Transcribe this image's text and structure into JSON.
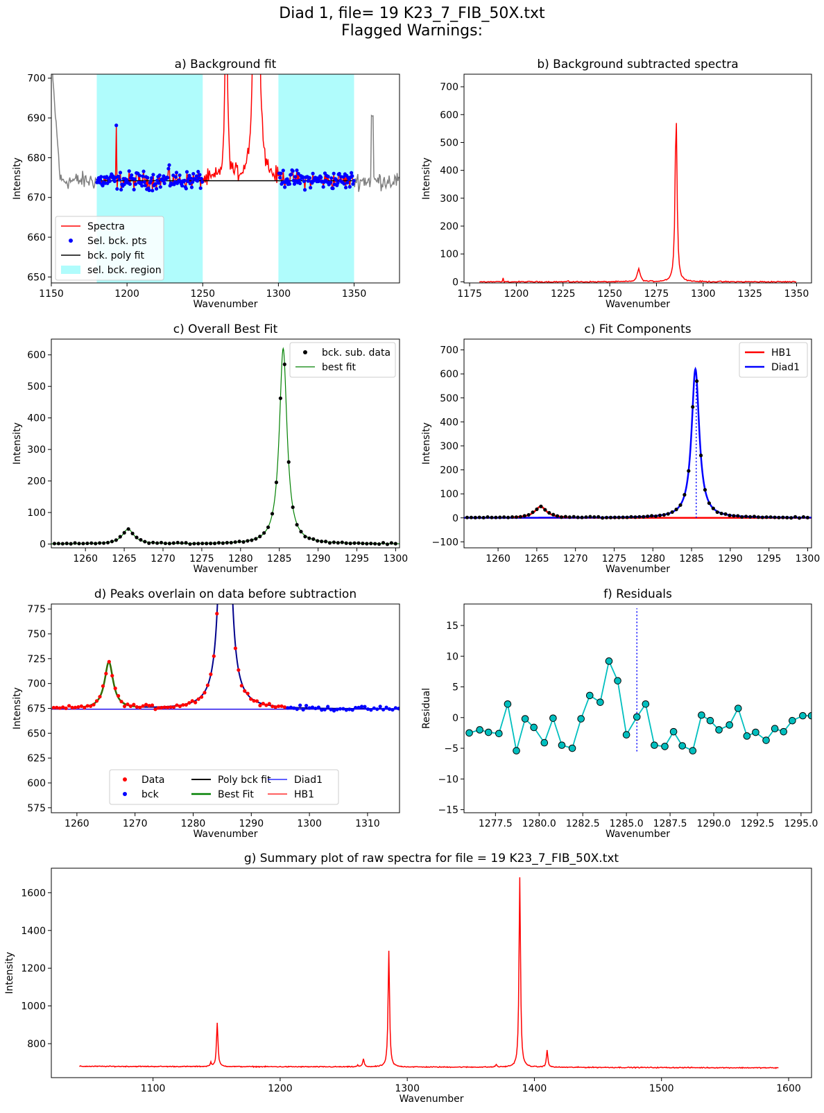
{
  "suptitle": [
    "Diad 1, file= 19 K23_7_FIB_50X.txt",
    "Flagged Warnings:"
  ],
  "colors": {
    "spectra": "#ff0000",
    "raw": "#808080",
    "bck_pts": "#0000ff",
    "poly": "#000000",
    "bck_region": "#b0fcfc",
    "best_fit": "#008000",
    "hb1": "#ff0000",
    "diad1": "#0000ff",
    "residual_line": "#00bfbf",
    "residual_marker": "#00bfbf"
  },
  "chart_data": [
    {
      "id": "a",
      "type": "line",
      "title": "a) Background fit",
      "xlabel": "Wavenumber",
      "ylabel": "Intensity",
      "xlim": [
        1150,
        1380
      ],
      "ylim": [
        648.5,
        701
      ],
      "xticks": [
        1150,
        1200,
        1250,
        1300,
        1350
      ],
      "yticks": [
        650,
        660,
        670,
        680,
        690,
        700
      ],
      "bck_regions": [
        [
          1180,
          1250
        ],
        [
          1300,
          1350
        ]
      ],
      "poly_fit": [
        [
          1180,
          674.2
        ],
        [
          1350,
          674.2
        ]
      ],
      "legend": {
        "position": "lower-left",
        "entries": [
          "Spectra",
          "Sel. bck. pts",
          "bck. poly fit",
          "sel. bck. region"
        ]
      }
    },
    {
      "id": "b",
      "type": "line",
      "title": "b) Background subtracted spectra",
      "xlabel": "Wavenumber",
      "ylabel": "Intensity",
      "xlim": [
        1172,
        1358
      ],
      "ylim": [
        -4,
        745
      ],
      "xticks": [
        1175,
        1200,
        1225,
        1250,
        1275,
        1300,
        1325,
        1350
      ],
      "yticks": [
        0,
        100,
        200,
        300,
        400,
        500,
        600,
        700
      ],
      "peaks": [
        {
          "x": 1265.5,
          "height": 47,
          "width": 0.9
        },
        {
          "x": 1285.5,
          "height": 620,
          "width": 0.6
        }
      ],
      "x_range": [
        1180,
        1350
      ]
    },
    {
      "id": "c1",
      "type": "scatter+line",
      "title": "c) Overall Best Fit",
      "xlabel": "Wavenumber",
      "ylabel": "Intensity",
      "xlim": [
        1255.6,
        1300.5
      ],
      "ylim": [
        -12,
        650
      ],
      "xticks": [
        1260,
        1265,
        1270,
        1275,
        1280,
        1285,
        1290,
        1295,
        1300
      ],
      "yticks": [
        0,
        100,
        200,
        300,
        400,
        500,
        600
      ],
      "legend": {
        "position": "top-right",
        "entries": [
          "bck. sub. data",
          "best fit"
        ]
      }
    },
    {
      "id": "c2",
      "type": "scatter+line",
      "title": "c) Fit Components",
      "xlabel": "Wavenumber",
      "ylabel": "Intensity",
      "xlim": [
        1255.6,
        1300.5
      ],
      "ylim": [
        -125,
        745
      ],
      "xticks": [
        1260,
        1265,
        1270,
        1275,
        1280,
        1285,
        1290,
        1295,
        1300
      ],
      "yticks": [
        -100,
        0,
        100,
        200,
        300,
        400,
        500,
        600,
        700
      ],
      "peak_marker_x": 1285.6,
      "legend": {
        "position": "top-right",
        "entries": [
          "HB1",
          "Diad1"
        ]
      }
    },
    {
      "id": "d",
      "type": "scatter+line",
      "title": "d) Peaks overlain on data before subtraction",
      "xlabel": "Wavenumber",
      "ylabel": "Intensity",
      "xlim": [
        1255.6,
        1315.5
      ],
      "ylim": [
        570,
        780
      ],
      "xticks": [
        1260,
        1270,
        1280,
        1290,
        1300,
        1310
      ],
      "yticks": [
        575,
        600,
        625,
        650,
        675,
        700,
        725,
        750,
        775
      ],
      "baseline": 674.2,
      "legend": {
        "position": "bottom-center",
        "entries": [
          "Data",
          "bck",
          "Poly bck fit",
          "Best Fit",
          "Diad1",
          "HB1"
        ]
      }
    },
    {
      "id": "f",
      "type": "line",
      "title": "f) Residuals",
      "xlabel": "Wavenumber",
      "ylabel": "Residual",
      "xlim": [
        1275.7,
        1295.6
      ],
      "ylim": [
        -15.5,
        18.5
      ],
      "xticks": [
        1277.5,
        1280.0,
        1282.5,
        1285.0,
        1287.5,
        1290.0,
        1292.5,
        1295.0
      ],
      "yticks": [
        -15,
        -10,
        -5,
        0,
        5,
        10,
        15
      ],
      "marker_x": 1285.6,
      "marker_range": [
        -5.5,
        17.8
      ],
      "x": [
        1276,
        1276.6,
        1277.1,
        1277.7,
        1278.2,
        1278.7,
        1279.2,
        1279.7,
        1280.3,
        1280.8,
        1281.3,
        1281.9,
        1282.4,
        1282.9,
        1283.5,
        1284.0,
        1284.5,
        1285.0,
        1285.6,
        1286.1,
        1286.6,
        1287.2,
        1287.7,
        1288.2,
        1288.8,
        1289.3,
        1289.8,
        1290.3,
        1290.9,
        1291.4,
        1291.9,
        1292.4,
        1293.0,
        1293.5,
        1294.0,
        1294.5,
        1295.1,
        1295.6
      ],
      "y": [
        -2.5,
        -2.0,
        -2.4,
        -2.6,
        2.2,
        -5.4,
        -0.2,
        -1.6,
        -4.1,
        -0.1,
        -4.5,
        -5.0,
        -0.2,
        3.6,
        2.5,
        9.2,
        6.0,
        -2.8,
        0.1,
        2.2,
        -4.5,
        -4.7,
        -2.3,
        -4.6,
        -5.4,
        0.4,
        -0.5,
        -2.0,
        -1.2,
        1.5,
        -3.0,
        -2.4,
        -3.7,
        -1.8,
        -2.3,
        -0.5,
        0.3,
        0.3
      ]
    },
    {
      "id": "g",
      "type": "line",
      "title": "g) Summary plot of raw spectra for file = 19 K23_7_FIB_50X.txt",
      "xlabel": "Wavenumber",
      "ylabel": "Intensity",
      "xlim": [
        1020,
        1618
      ],
      "ylim": [
        620,
        1730
      ],
      "xticks": [
        1100,
        1200,
        1300,
        1400,
        1500,
        1600
      ],
      "yticks": [
        800,
        1000,
        1200,
        1400,
        1600
      ],
      "x_range": [
        1042,
        1592
      ],
      "baseline": [
        680,
        672
      ],
      "peaks": [
        {
          "x": 1150.5,
          "height": 232
        },
        {
          "x": 1265.5,
          "height": 42
        },
        {
          "x": 1285.5,
          "height": 615
        },
        {
          "x": 1388.5,
          "height": 1006
        },
        {
          "x": 1410,
          "height": 88
        }
      ]
    }
  ]
}
